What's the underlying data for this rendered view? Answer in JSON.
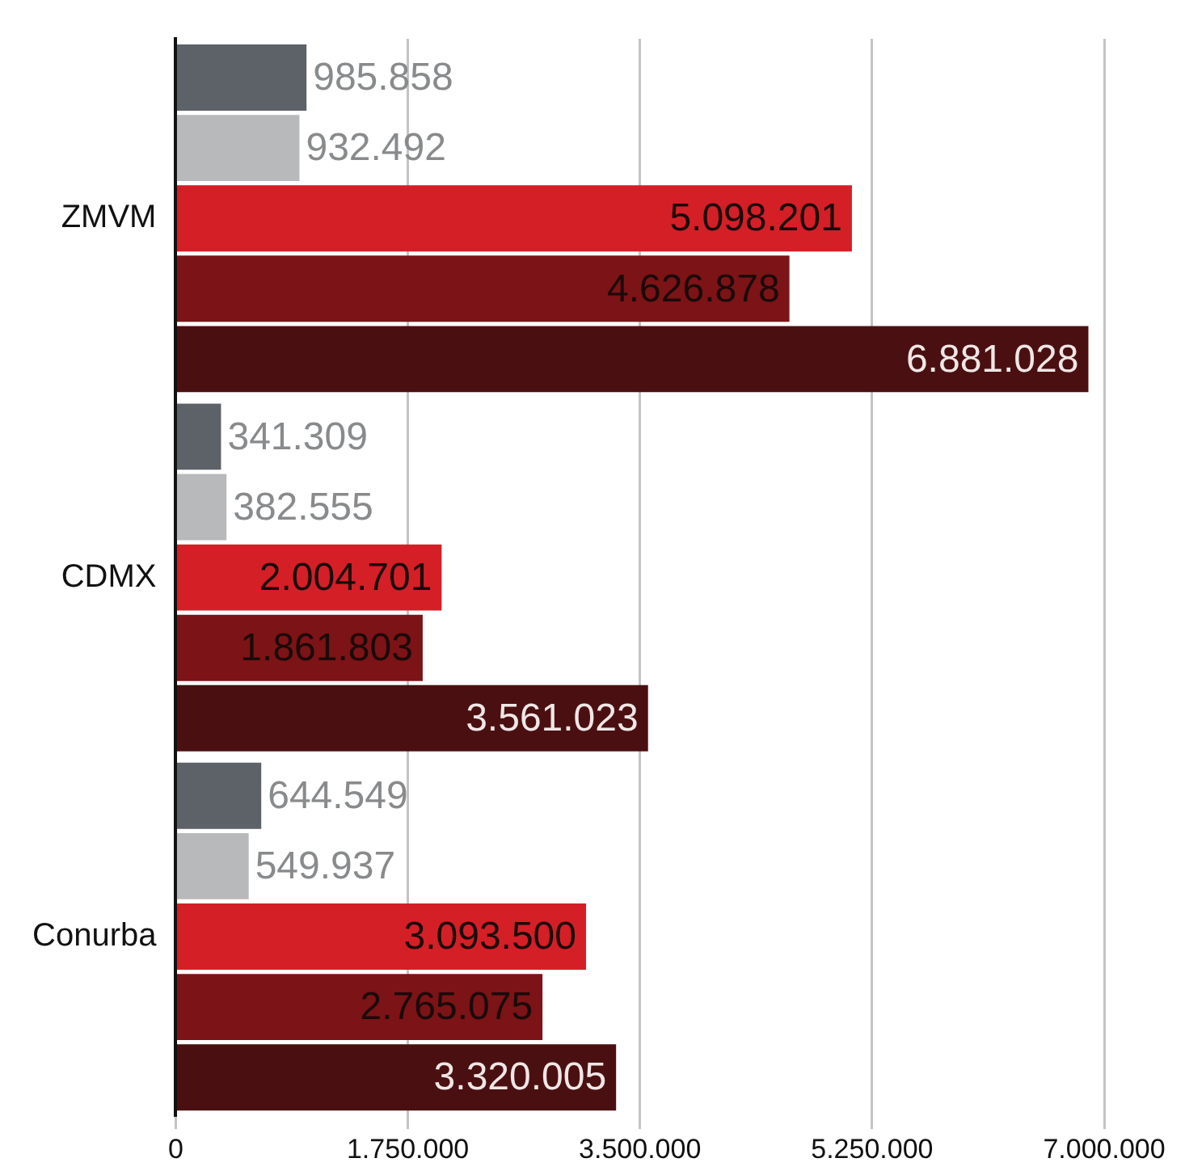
{
  "chart_data": {
    "type": "bar",
    "orientation": "horizontal",
    "categories": [
      "ZMVM",
      "CDMX",
      "Conurba"
    ],
    "series": [
      {
        "color": "#5d6168",
        "values": [
          985858,
          341309,
          644549
        ],
        "value_labels": [
          "985.858",
          "341.309",
          "644.549"
        ]
      },
      {
        "color": "#b7b9ba",
        "values": [
          932492,
          382555,
          549937
        ],
        "value_labels": [
          "932.492",
          "382.555",
          "549.937"
        ]
      },
      {
        "color": "#d41f27",
        "values": [
          5098201,
          2004701,
          3093500
        ],
        "value_labels": [
          "5.098.201",
          "2.004.701",
          "3.093.500"
        ]
      },
      {
        "color": "#7c1316",
        "values": [
          4626878,
          1861803,
          2765075
        ],
        "value_labels": [
          "4.626.878",
          "1.861.803",
          "2.765.075"
        ]
      },
      {
        "color": "#4a1011",
        "values": [
          6881028,
          3561023,
          3320005
        ],
        "value_labels": [
          "6.881.028",
          "3.561.023",
          "3.320.005"
        ]
      }
    ],
    "xlim": [
      0,
      7000000
    ],
    "xticks": [
      {
        "value": 0,
        "label": "0"
      },
      {
        "value": 1750000,
        "label": "1.750.000"
      },
      {
        "value": 3500000,
        "label": "3.500.000"
      },
      {
        "value": 5250000,
        "label": "5.250.000"
      },
      {
        "value": 7000000,
        "label": "7.000.000"
      }
    ],
    "grid": "x",
    "legend": false
  }
}
